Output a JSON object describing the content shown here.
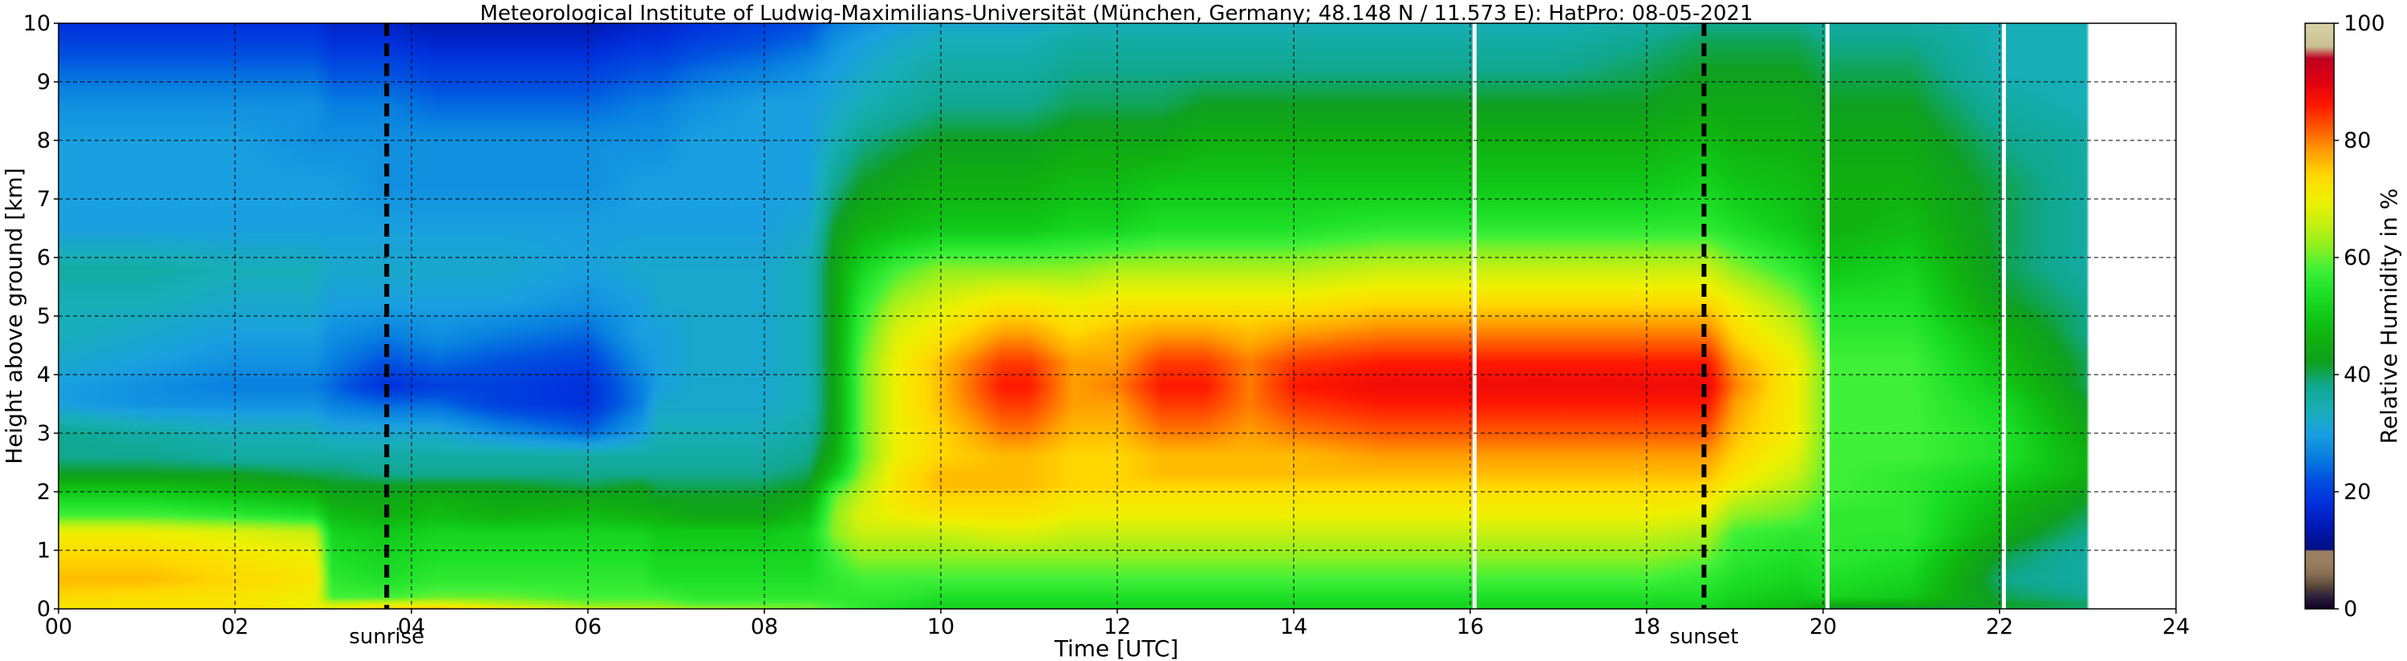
{
  "chart_data": {
    "type": "heatmap",
    "title": "Meteorological Institute of Ludwig-Maximilians-Universität (München, Germany; 48.148 N / 11.573 E):    HatPro: 08-05-2021",
    "xlabel": "Time [UTC]",
    "ylabel": "Height above ground [km]",
    "colorbar_label": "Relative Humidity in %",
    "x_range": [
      0,
      24
    ],
    "y_range": [
      0,
      10
    ],
    "x_ticks": [
      "00",
      "02",
      "04",
      "06",
      "08",
      "10",
      "12",
      "14",
      "16",
      "18",
      "20",
      "22",
      "24"
    ],
    "y_ticks": [
      "0",
      "1",
      "2",
      "3",
      "4",
      "5",
      "6",
      "7",
      "8",
      "9",
      "10"
    ],
    "colorbar_ticks": [
      "0",
      "20",
      "40",
      "60",
      "80",
      "100"
    ],
    "colorbar_range": [
      0,
      100
    ],
    "grid": true,
    "data_end_hour": 23.0,
    "data_gaps_hours": [
      16.05,
      20.05,
      22.05
    ],
    "events": [
      {
        "label": "sunrise",
        "hour": 3.72
      },
      {
        "label": "sunset",
        "hour": 18.65
      }
    ],
    "colormap": [
      [
        0,
        "#110022"
      ],
      [
        2,
        "#2a1f3c"
      ],
      [
        4,
        "#5c4a3a"
      ],
      [
        6,
        "#8b6f55"
      ],
      [
        8,
        "#9a8060"
      ],
      [
        9.99,
        "#9a8060"
      ],
      [
        10,
        "#000f80"
      ],
      [
        14,
        "#0019b4"
      ],
      [
        18,
        "#0030dc"
      ],
      [
        22,
        "#0050e0"
      ],
      [
        26,
        "#0880e0"
      ],
      [
        30,
        "#1aa0e0"
      ],
      [
        34,
        "#18aeb8"
      ],
      [
        38,
        "#10a890"
      ],
      [
        42,
        "#0fa020"
      ],
      [
        46,
        "#10b010"
      ],
      [
        50,
        "#10c818"
      ],
      [
        54,
        "#1ee028"
      ],
      [
        58,
        "#40f038"
      ],
      [
        62,
        "#90f020"
      ],
      [
        66,
        "#c8f010"
      ],
      [
        70,
        "#f0f000"
      ],
      [
        74,
        "#ffd800"
      ],
      [
        78,
        "#ffa000"
      ],
      [
        82,
        "#ff5a00"
      ],
      [
        86,
        "#ff1800"
      ],
      [
        90,
        "#e00010"
      ],
      [
        94,
        "#c00020"
      ],
      [
        96,
        "#c8c090"
      ],
      [
        100,
        "#d8d4a8"
      ]
    ],
    "rh_field": {
      "time_hours": [
        0,
        1,
        2,
        2.9,
        3.1,
        3.7,
        4.3,
        5,
        6,
        6.6,
        6.8,
        7.2,
        8,
        8.5,
        8.8,
        9.1,
        9.5,
        10,
        10.7,
        11,
        11.5,
        12,
        12.5,
        13,
        13.5,
        14,
        15,
        16,
        17,
        18,
        18.7,
        19,
        19.7,
        20.1,
        21,
        22.1,
        23
      ],
      "height_km": [
        0,
        0.05,
        0.2,
        0.5,
        0.9,
        1.3,
        1.6,
        1.9,
        2.1,
        2.3,
        2.6,
        3,
        3.5,
        3.8,
        4.2,
        4.7,
        5.2,
        5.8,
        6.5,
        7.2,
        8,
        8.6,
        9.2,
        9.7,
        10
      ],
      "values": [
        [
          72,
          72,
          74,
          76,
          74,
          70,
          58,
          52,
          48,
          42,
          38,
          38,
          30,
          30,
          32,
          34,
          34,
          36,
          30,
          30,
          30,
          28,
          24,
          20,
          18
        ],
        [
          72,
          72,
          73,
          76,
          74,
          70,
          58,
          52,
          48,
          42,
          38,
          36,
          28,
          28,
          30,
          32,
          34,
          36,
          30,
          30,
          30,
          28,
          24,
          20,
          18
        ],
        [
          72,
          72,
          72,
          74,
          72,
          68,
          56,
          50,
          46,
          42,
          36,
          34,
          28,
          26,
          28,
          30,
          32,
          34,
          30,
          30,
          30,
          28,
          24,
          20,
          18
        ],
        [
          70,
          70,
          70,
          72,
          70,
          66,
          54,
          48,
          44,
          40,
          36,
          34,
          28,
          26,
          28,
          30,
          32,
          34,
          30,
          30,
          28,
          28,
          24,
          20,
          18
        ],
        [
          68,
          68,
          58,
          56,
          54,
          52,
          48,
          44,
          42,
          40,
          36,
          32,
          26,
          24,
          26,
          28,
          30,
          32,
          30,
          30,
          28,
          26,
          22,
          18,
          16
        ],
        [
          76,
          70,
          58,
          54,
          52,
          50,
          46,
          44,
          42,
          38,
          36,
          32,
          24,
          18,
          22,
          26,
          30,
          32,
          30,
          28,
          28,
          26,
          22,
          18,
          16
        ],
        [
          78,
          70,
          60,
          56,
          54,
          52,
          48,
          46,
          42,
          38,
          36,
          32,
          24,
          20,
          24,
          28,
          30,
          32,
          30,
          28,
          28,
          24,
          20,
          16,
          14
        ],
        [
          74,
          66,
          60,
          56,
          54,
          52,
          46,
          44,
          42,
          38,
          36,
          28,
          20,
          20,
          22,
          26,
          30,
          32,
          30,
          28,
          28,
          24,
          20,
          16,
          14
        ],
        [
          68,
          62,
          58,
          56,
          54,
          52,
          48,
          44,
          40,
          38,
          36,
          24,
          18,
          18,
          20,
          24,
          28,
          30,
          30,
          28,
          28,
          24,
          20,
          16,
          14
        ],
        [
          66,
          62,
          58,
          56,
          54,
          52,
          46,
          44,
          42,
          38,
          36,
          30,
          26,
          26,
          28,
          30,
          30,
          32,
          30,
          30,
          28,
          26,
          22,
          18,
          16
        ],
        [
          66,
          62,
          58,
          54,
          52,
          50,
          46,
          42,
          40,
          38,
          36,
          34,
          32,
          30,
          30,
          30,
          32,
          32,
          30,
          30,
          28,
          26,
          22,
          18,
          16
        ],
        [
          64,
          60,
          56,
          54,
          52,
          50,
          44,
          42,
          40,
          38,
          36,
          34,
          32,
          32,
          32,
          32,
          32,
          32,
          30,
          30,
          30,
          28,
          24,
          20,
          18
        ],
        [
          62,
          60,
          56,
          54,
          52,
          50,
          44,
          42,
          40,
          38,
          36,
          34,
          32,
          32,
          32,
          32,
          32,
          32,
          30,
          30,
          30,
          30,
          26,
          22,
          20
        ],
        [
          60,
          60,
          56,
          54,
          52,
          52,
          48,
          44,
          42,
          40,
          38,
          36,
          34,
          34,
          34,
          34,
          34,
          34,
          32,
          30,
          30,
          30,
          28,
          24,
          22
        ],
        [
          58,
          58,
          56,
          56,
          58,
          62,
          62,
          60,
          56,
          50,
          46,
          44,
          44,
          44,
          44,
          44,
          44,
          44,
          42,
          38,
          34,
          32,
          30,
          28,
          26
        ],
        [
          56,
          56,
          56,
          58,
          62,
          66,
          68,
          66,
          64,
          62,
          60,
          60,
          60,
          60,
          60,
          58,
          56,
          52,
          46,
          42,
          38,
          34,
          32,
          30,
          28
        ],
        [
          54,
          54,
          56,
          58,
          62,
          66,
          70,
          72,
          72,
          72,
          70,
          70,
          70,
          70,
          70,
          68,
          64,
          58,
          48,
          44,
          40,
          36,
          34,
          32,
          30
        ],
        [
          52,
          52,
          54,
          58,
          62,
          66,
          72,
          74,
          76,
          76,
          74,
          74,
          76,
          76,
          76,
          72,
          68,
          62,
          50,
          46,
          42,
          38,
          36,
          34,
          32
        ],
        [
          52,
          52,
          54,
          58,
          62,
          68,
          72,
          74,
          76,
          76,
          76,
          80,
          84,
          86,
          84,
          78,
          72,
          62,
          50,
          46,
          42,
          38,
          36,
          34,
          32
        ],
        [
          52,
          52,
          54,
          58,
          62,
          68,
          72,
          74,
          76,
          76,
          76,
          80,
          84,
          86,
          84,
          78,
          72,
          62,
          50,
          46,
          42,
          38,
          36,
          34,
          32
        ],
        [
          52,
          52,
          54,
          58,
          62,
          66,
          70,
          72,
          74,
          74,
          74,
          76,
          78,
          78,
          78,
          74,
          70,
          62,
          52,
          48,
          44,
          40,
          38,
          36,
          34
        ],
        [
          52,
          52,
          54,
          58,
          62,
          66,
          70,
          72,
          74,
          74,
          74,
          76,
          78,
          80,
          78,
          76,
          72,
          64,
          52,
          48,
          44,
          40,
          38,
          36,
          34
        ],
        [
          52,
          52,
          54,
          58,
          62,
          66,
          70,
          72,
          74,
          76,
          76,
          80,
          84,
          86,
          84,
          78,
          72,
          64,
          54,
          50,
          44,
          40,
          38,
          36,
          34
        ],
        [
          52,
          52,
          54,
          58,
          62,
          66,
          70,
          72,
          74,
          76,
          76,
          80,
          84,
          86,
          84,
          78,
          72,
          64,
          54,
          50,
          46,
          42,
          38,
          36,
          34
        ],
        [
          52,
          52,
          54,
          58,
          62,
          66,
          70,
          72,
          74,
          76,
          76,
          78,
          80,
          80,
          80,
          76,
          72,
          64,
          54,
          50,
          46,
          42,
          38,
          36,
          34
        ],
        [
          52,
          52,
          54,
          58,
          62,
          66,
          70,
          72,
          74,
          76,
          76,
          80,
          84,
          86,
          84,
          78,
          72,
          64,
          54,
          50,
          46,
          42,
          38,
          36,
          34
        ],
        [
          52,
          52,
          54,
          58,
          62,
          66,
          70,
          72,
          74,
          76,
          78,
          82,
          86,
          88,
          86,
          80,
          74,
          66,
          56,
          50,
          46,
          42,
          38,
          36,
          34
        ],
        [
          52,
          52,
          54,
          58,
          62,
          66,
          70,
          72,
          74,
          76,
          78,
          82,
          86,
          88,
          86,
          80,
          74,
          66,
          56,
          50,
          46,
          42,
          38,
          36,
          34
        ],
        [
          52,
          52,
          54,
          58,
          62,
          66,
          70,
          72,
          74,
          76,
          78,
          82,
          86,
          88,
          86,
          80,
          74,
          66,
          56,
          50,
          46,
          42,
          38,
          36,
          34
        ],
        [
          52,
          52,
          54,
          58,
          62,
          66,
          70,
          72,
          74,
          76,
          78,
          82,
          86,
          88,
          86,
          80,
          74,
          66,
          56,
          50,
          46,
          42,
          40,
          38,
          36
        ],
        [
          52,
          52,
          54,
          56,
          60,
          64,
          68,
          72,
          74,
          76,
          78,
          82,
          86,
          88,
          86,
          80,
          74,
          66,
          56,
          52,
          48,
          44,
          42,
          40,
          38
        ],
        [
          50,
          50,
          52,
          54,
          56,
          58,
          62,
          66,
          70,
          72,
          74,
          76,
          78,
          80,
          78,
          74,
          70,
          62,
          54,
          50,
          46,
          44,
          42,
          40,
          38
        ],
        [
          48,
          48,
          50,
          52,
          54,
          56,
          60,
          62,
          64,
          66,
          68,
          70,
          70,
          70,
          70,
          66,
          62,
          56,
          50,
          48,
          46,
          44,
          42,
          40,
          38
        ],
        [
          40,
          44,
          52,
          54,
          56,
          56,
          56,
          58,
          58,
          58,
          58,
          58,
          58,
          58,
          58,
          56,
          54,
          50,
          46,
          46,
          44,
          42,
          40,
          38,
          36
        ],
        [
          40,
          44,
          50,
          52,
          54,
          56,
          56,
          56,
          56,
          56,
          58,
          58,
          58,
          58,
          58,
          56,
          54,
          52,
          48,
          46,
          44,
          42,
          40,
          38,
          36
        ],
        [
          40,
          42,
          40,
          38,
          40,
          44,
          46,
          48,
          50,
          52,
          54,
          54,
          52,
          50,
          48,
          46,
          42,
          40,
          40,
          40,
          38,
          36,
          34,
          34,
          34
        ],
        [
          38,
          40,
          38,
          36,
          36,
          38,
          40,
          42,
          44,
          46,
          46,
          44,
          42,
          40,
          40,
          38,
          38,
          36,
          36,
          36,
          36,
          34,
          34,
          34,
          34
        ]
      ]
    }
  }
}
